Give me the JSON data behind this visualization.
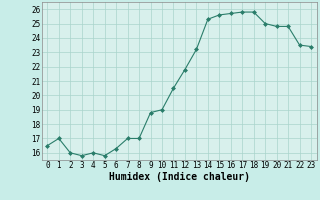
{
  "hours": [
    0,
    1,
    2,
    3,
    4,
    5,
    6,
    7,
    8,
    9,
    10,
    11,
    12,
    13,
    14,
    15,
    16,
    17,
    18,
    19,
    20,
    21,
    22,
    23
  ],
  "values": [
    16.5,
    17.0,
    16.0,
    15.8,
    16.0,
    15.8,
    16.3,
    17.0,
    17.0,
    18.8,
    19.0,
    20.5,
    21.8,
    23.2,
    25.3,
    25.6,
    25.7,
    25.8,
    25.8,
    25.0,
    24.8,
    24.8,
    23.5,
    23.4
  ],
  "xlabel": "Humidex (Indice chaleur)",
  "ylim": [
    15.5,
    26.5
  ],
  "xlim": [
    -0.5,
    23.5
  ],
  "yticks": [
    16,
    17,
    18,
    19,
    20,
    21,
    22,
    23,
    24,
    25,
    26
  ],
  "xticks": [
    0,
    1,
    2,
    3,
    4,
    5,
    6,
    7,
    8,
    9,
    10,
    11,
    12,
    13,
    14,
    15,
    16,
    17,
    18,
    19,
    20,
    21,
    22,
    23
  ],
  "line_color": "#2a7d6a",
  "bg_color": "#c8ede8",
  "grid_color": "#aad4cc",
  "axes_bg": "#d8f0ec",
  "tick_fontsize": 5.5,
  "xlabel_fontsize": 7
}
